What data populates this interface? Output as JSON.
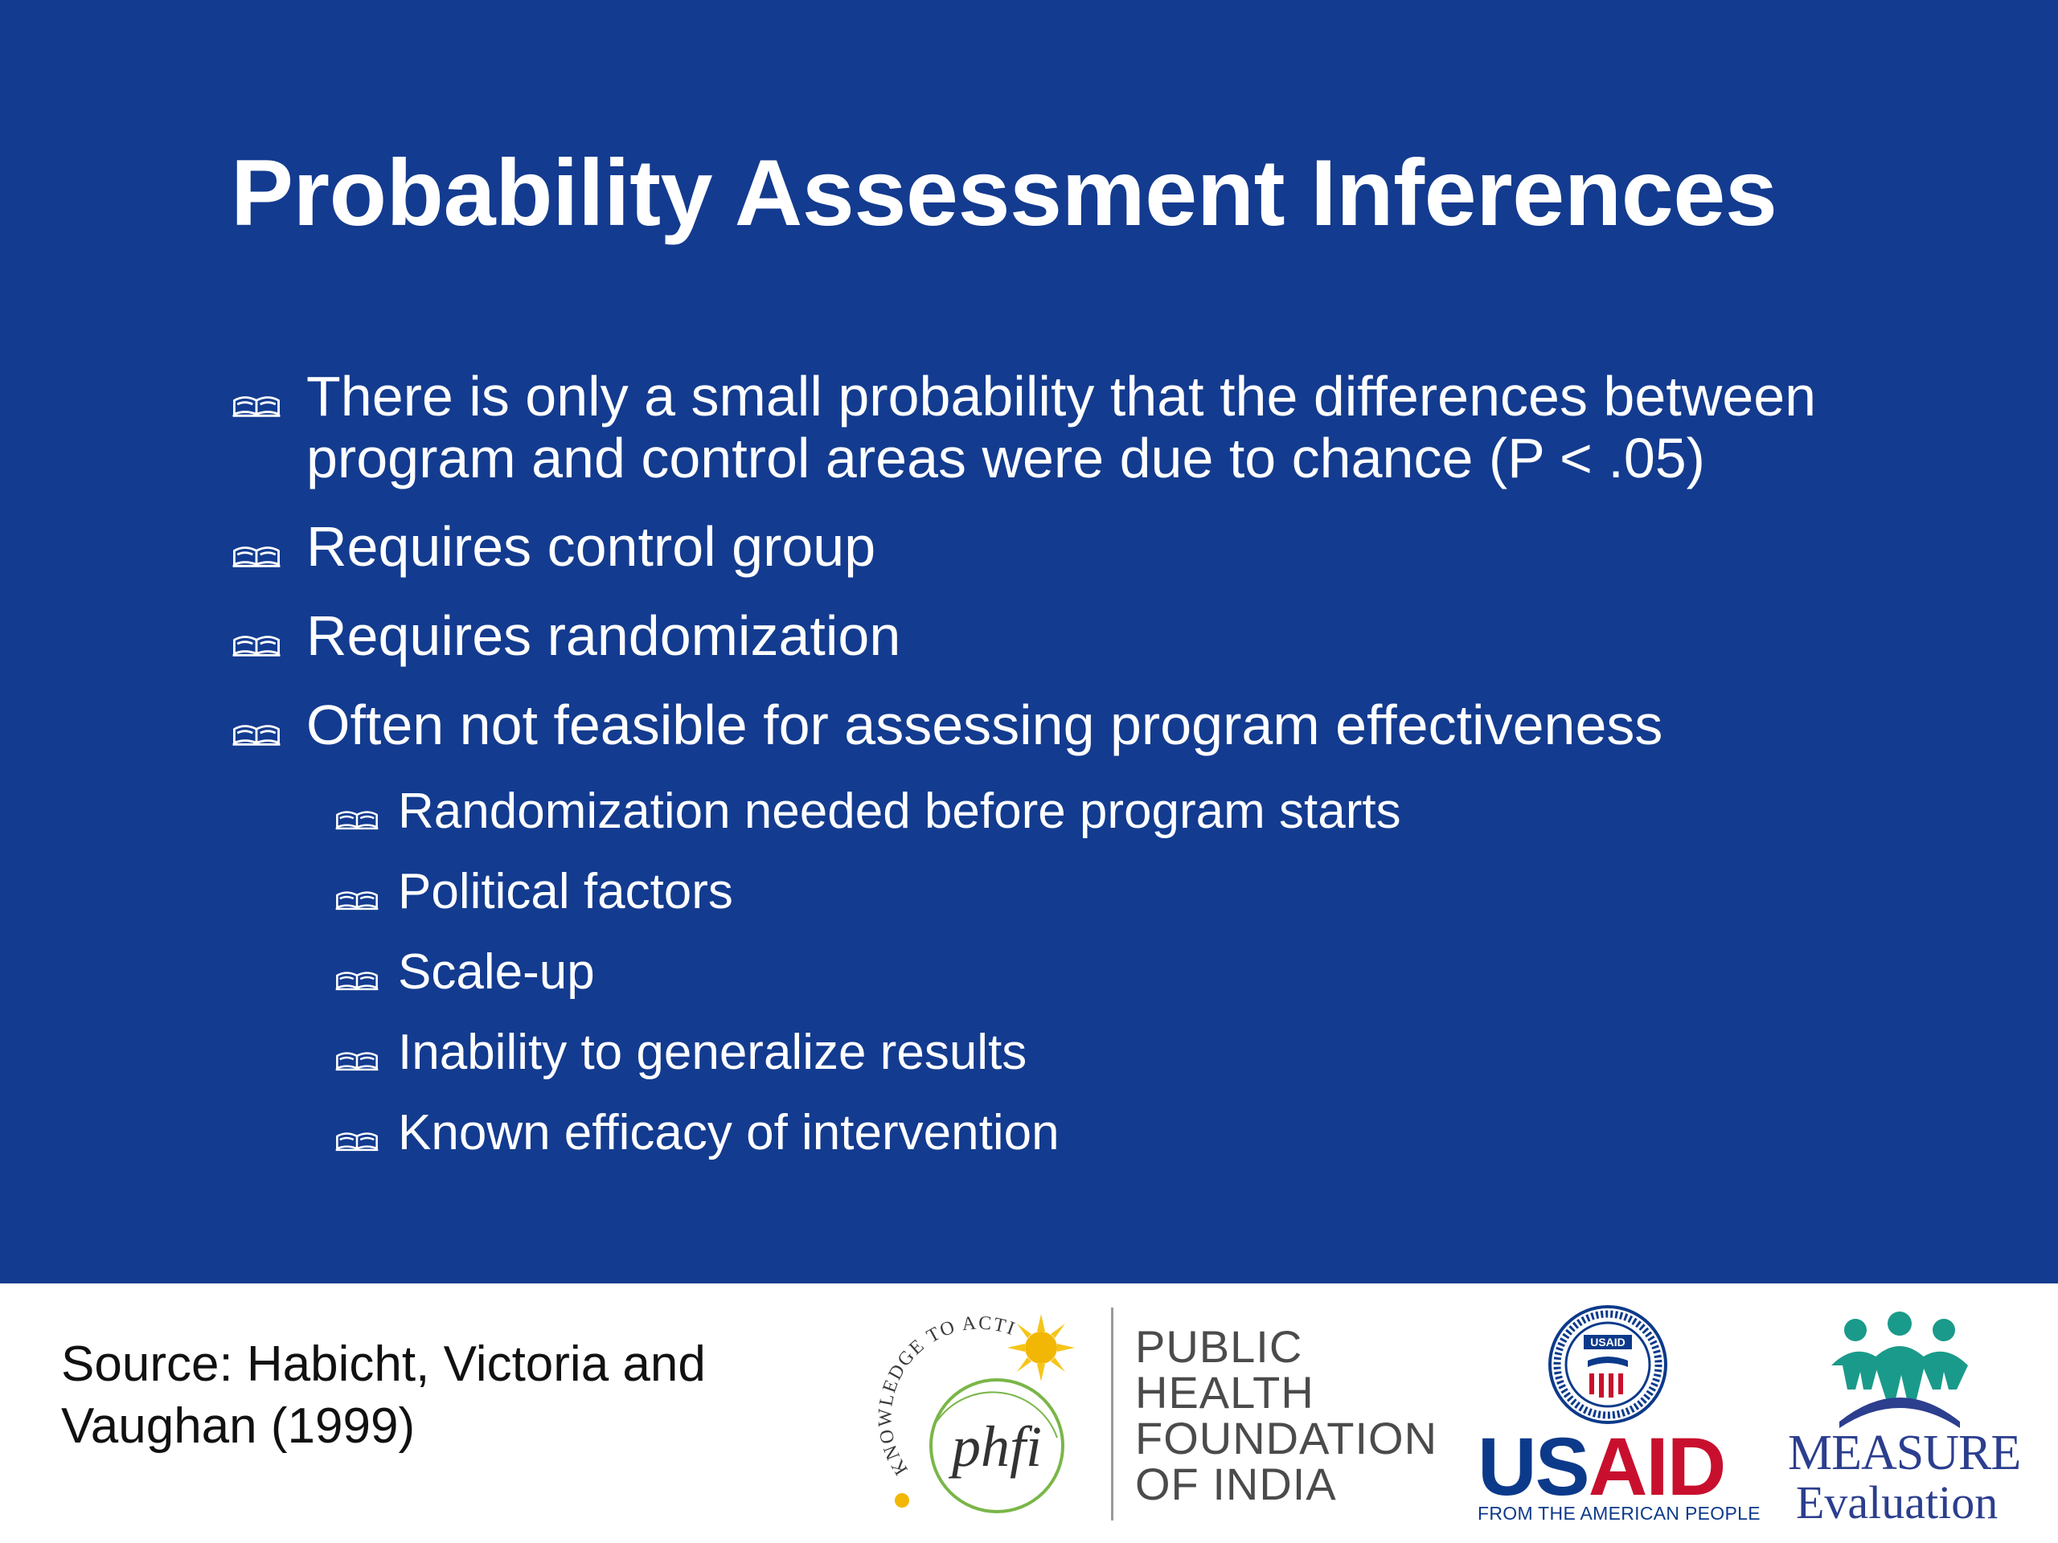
{
  "slide": {
    "title": "Probability Assessment Inferences",
    "bullets": [
      {
        "level": 1,
        "lines": [
          "There is only a small probability that the differences between",
          "program and control areas were due to chance (P < .05)"
        ]
      },
      {
        "level": 1,
        "lines": [
          "Requires control group"
        ]
      },
      {
        "level": 1,
        "lines": [
          "Requires randomization"
        ]
      },
      {
        "level": 1,
        "lines": [
          "Often not feasible for assessing program effectiveness"
        ]
      },
      {
        "level": 2,
        "lines": [
          "Randomization needed before program starts"
        ]
      },
      {
        "level": 2,
        "lines": [
          "Political factors"
        ]
      },
      {
        "level": 2,
        "lines": [
          "Scale-up"
        ]
      },
      {
        "level": 2,
        "lines": [
          "Inability to generalize results"
        ]
      },
      {
        "level": 2,
        "lines": [
          "Known efficacy of intervention"
        ]
      }
    ],
    "bullet_icon": "open-book-icon",
    "colors": {
      "background": "#133b8f",
      "text": "#ffffff"
    }
  },
  "footer": {
    "source_line1": "Source: Habicht, Victoria and",
    "source_line2": "Vaughan (1999)",
    "phfi": {
      "arc_text": "KNOWLEDGE TO ACTION",
      "mark": "phfi",
      "name_lines": [
        "PUBLIC",
        "HEALTH",
        "FOUNDATION",
        "OF INDIA"
      ]
    },
    "usaid": {
      "seal_text": "USAID",
      "word_blue": "US",
      "word_red": "AID",
      "tagline": "FROM THE AMERICAN PEOPLE"
    },
    "measure": {
      "word1": "MEASURE",
      "word2": "Evaluation"
    },
    "colors": {
      "usaid_blue": "#0c3a8a",
      "usaid_red": "#c8102e",
      "measure_teal": "#1a9a8a",
      "measure_navy": "#2c3e8e"
    }
  }
}
